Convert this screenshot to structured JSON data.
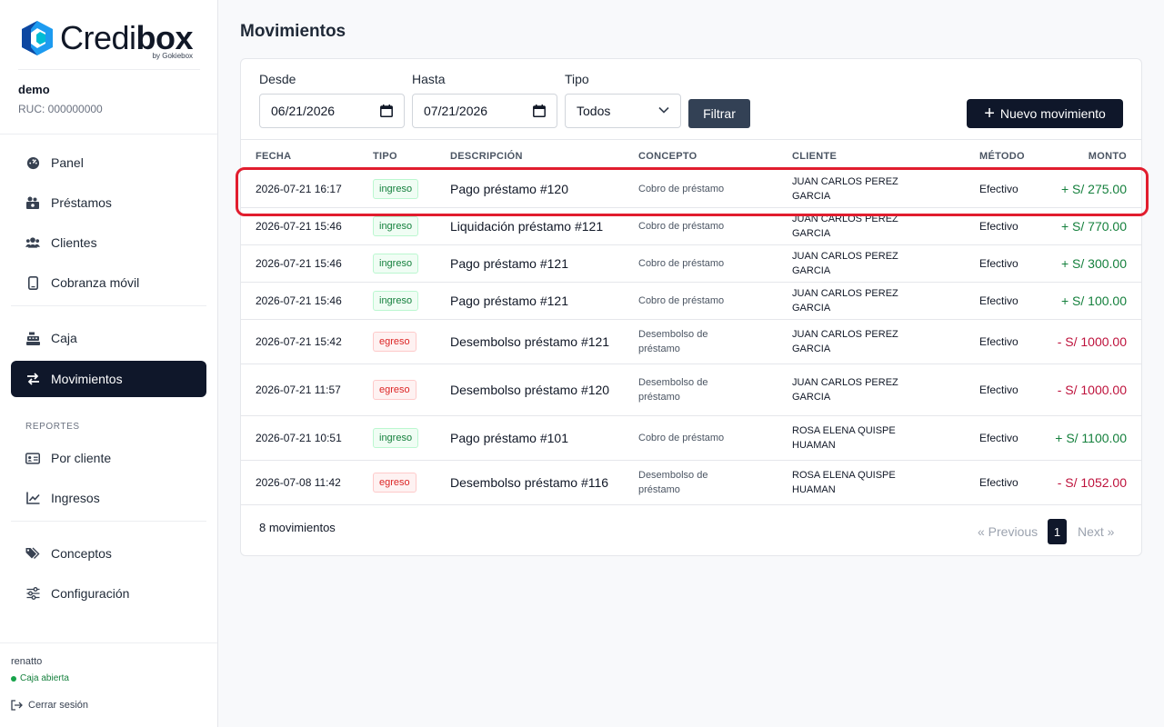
{
  "brand": {
    "name_regular": "Credi",
    "name_bold": "box",
    "sub": "by Gokiebox",
    "colors": {
      "primary": "#0f172a",
      "logo_blue": "#1d9bf0",
      "logo_dark": "#0d47a1"
    }
  },
  "company": {
    "name": "demo",
    "ruc": "RUC: 000000000"
  },
  "nav": {
    "items": [
      {
        "label": "Panel",
        "icon": "dashboard-icon"
      },
      {
        "label": "Préstamos",
        "icon": "money-icon"
      },
      {
        "label": "Clientes",
        "icon": "users-icon"
      },
      {
        "label": "Cobranza móvil",
        "icon": "mobile-icon"
      },
      {
        "label": "Caja",
        "icon": "cash-register-icon"
      },
      {
        "label": "Movimientos",
        "icon": "exchange-icon"
      }
    ],
    "section_label": "REPORTES",
    "report_items": [
      {
        "label": "Por cliente",
        "icon": "id-card-icon"
      },
      {
        "label": "Ingresos",
        "icon": "chart-line-icon"
      }
    ],
    "extra_items": [
      {
        "label": "Conceptos",
        "icon": "tags-icon"
      },
      {
        "label": "Configuración",
        "icon": "sliders-icon"
      }
    ]
  },
  "footer": {
    "user": "renatto",
    "status": "Caja abierta",
    "logout": "Cerrar sesión"
  },
  "page": {
    "title": "Movimientos"
  },
  "filters": {
    "from_label": "Desde",
    "from_value": "06/21/2026",
    "to_label": "Hasta",
    "to_value": "07/21/2026",
    "type_label": "Tipo",
    "type_value": "Todos",
    "filter_button": "Filtrar",
    "new_button": "Nuevo movimiento"
  },
  "table": {
    "headers": [
      "FECHA",
      "TIPO",
      "DESCRIPCIÓN",
      "CONCEPTO",
      "CLIENTE",
      "MÉTODO",
      "MONTO"
    ],
    "rows": [
      {
        "fecha": "2026-07-21 16:17",
        "tipo": "ingreso",
        "descripcion": "Pago préstamo #120",
        "concepto": "Cobro de préstamo",
        "cliente": "JUAN CARLOS PEREZ GARCIA",
        "metodo": "Efectivo",
        "monto": "+ S/ 275.00"
      },
      {
        "fecha": "2026-07-21 15:46",
        "tipo": "ingreso",
        "descripcion": "Liquidación préstamo #121",
        "concepto": "Cobro de préstamo",
        "cliente": "JUAN CARLOS PEREZ GARCIA",
        "metodo": "Efectivo",
        "monto": "+ S/ 770.00"
      },
      {
        "fecha": "2026-07-21 15:46",
        "tipo": "ingreso",
        "descripcion": "Pago préstamo #121",
        "concepto": "Cobro de préstamo",
        "cliente": "JUAN CARLOS PEREZ GARCIA",
        "metodo": "Efectivo",
        "monto": "+ S/ 300.00"
      },
      {
        "fecha": "2026-07-21 15:46",
        "tipo": "ingreso",
        "descripcion": "Pago préstamo #121",
        "concepto": "Cobro de préstamo",
        "cliente": "JUAN CARLOS PEREZ GARCIA",
        "metodo": "Efectivo",
        "monto": "+ S/ 100.00"
      },
      {
        "fecha": "2026-07-21 15:42",
        "tipo": "egreso",
        "descripcion": "Desembolso préstamo #121",
        "concepto": "Desembolso de préstamo",
        "cliente": "JUAN CARLOS PEREZ GARCIA",
        "metodo": "Efectivo",
        "monto": "- S/ 1000.00"
      },
      {
        "fecha": "2026-07-21 11:57",
        "tipo": "egreso",
        "descripcion": "Desembolso préstamo #120",
        "concepto": "Desembolso de préstamo",
        "cliente": "JUAN CARLOS PEREZ GARCIA",
        "metodo": "Efectivo",
        "monto": "- S/ 1000.00"
      },
      {
        "fecha": "2026-07-21 10:51",
        "tipo": "ingreso",
        "descripcion": "Pago préstamo #101",
        "concepto": "Cobro de préstamo",
        "cliente": "ROSA ELENA QUISPE HUAMAN",
        "metodo": "Efectivo",
        "monto": "+ S/ 1100.00"
      },
      {
        "fecha": "2026-07-08 11:42",
        "tipo": "egreso",
        "descripcion": "Desembolso préstamo #116",
        "concepto": "Desembolso de préstamo",
        "cliente": "ROSA ELENA QUISPE HUAMAN",
        "metodo": "Efectivo",
        "monto": "- S/ 1052.00"
      }
    ]
  },
  "pagination": {
    "count": "8 movimientos",
    "prev": "« Previous",
    "current": "1",
    "next": "Next »"
  }
}
